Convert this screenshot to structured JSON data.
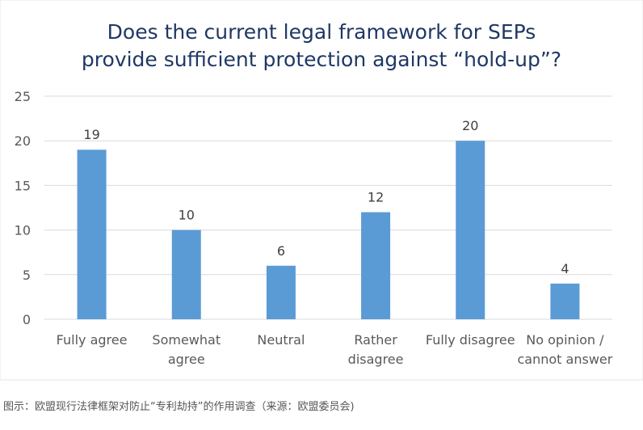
{
  "chart_data": {
    "type": "bar",
    "title_lines": [
      "Does the current legal framework for SEPs",
      "provide sufficient protection against “hold-up”?"
    ],
    "categories": [
      [
        "Fully agree"
      ],
      [
        "Somewhat",
        "agree"
      ],
      [
        "Neutral"
      ],
      [
        "Rather",
        "disagree"
      ],
      [
        "Fully disagree"
      ],
      [
        "No opinion /",
        "cannot answer"
      ]
    ],
    "values": [
      19,
      10,
      6,
      12,
      20,
      4
    ],
    "ylim": [
      0,
      25
    ],
    "yticks": [
      0,
      5,
      10,
      15,
      20,
      25
    ],
    "grid": true,
    "legend": "none",
    "bar_color": "#5b9bd5",
    "grid_color": "#d9d9d9"
  },
  "caption": "图示：欧盟现行法律框架对防止“专利劫持”的作用调查（来源：欧盟委员会)"
}
